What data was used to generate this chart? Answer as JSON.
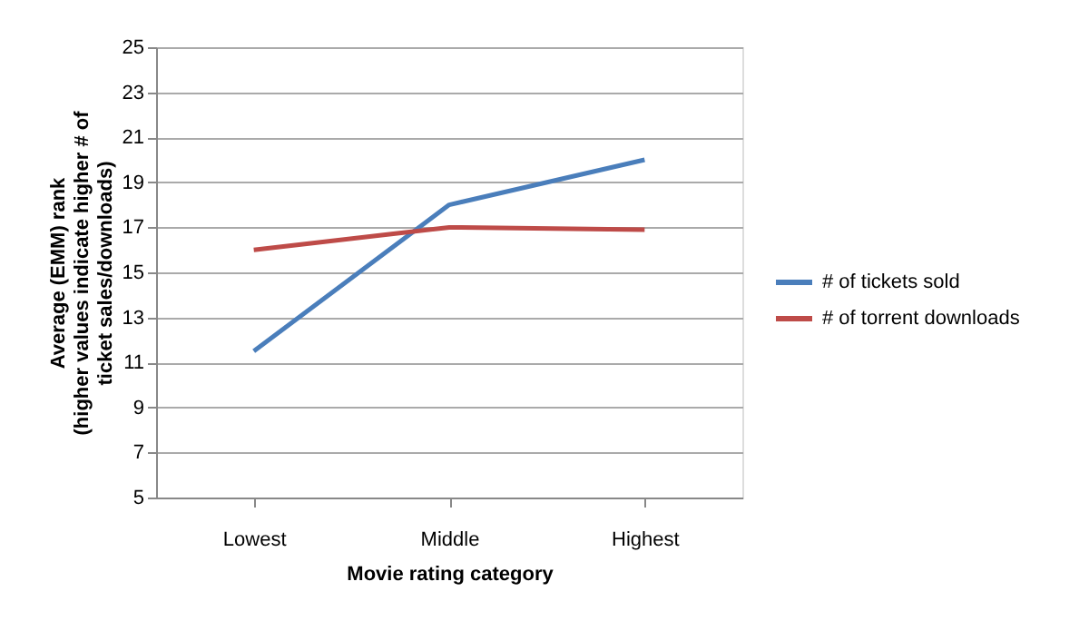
{
  "chart_data": {
    "type": "line",
    "xlabel": "Movie rating category",
    "ylabel": "Average (EMM) rank\n(higher values indicate higher # of\nticket sales/downloads)",
    "categories": [
      "Lowest",
      "Middle",
      "Highest"
    ],
    "series": [
      {
        "name": "# of tickets sold",
        "color": "#4a7ebb",
        "values": [
          11.5,
          18,
          20
        ]
      },
      {
        "name": "# of torrent downloads",
        "color": "#be4b48",
        "values": [
          16,
          17,
          16.9
        ]
      }
    ],
    "ylim": [
      5,
      25
    ],
    "yticks": [
      5,
      7,
      9,
      11,
      13,
      15,
      17,
      19,
      21,
      23,
      25
    ],
    "grid": "y",
    "legend": "right",
    "marker": "none",
    "line_style": "solid"
  }
}
